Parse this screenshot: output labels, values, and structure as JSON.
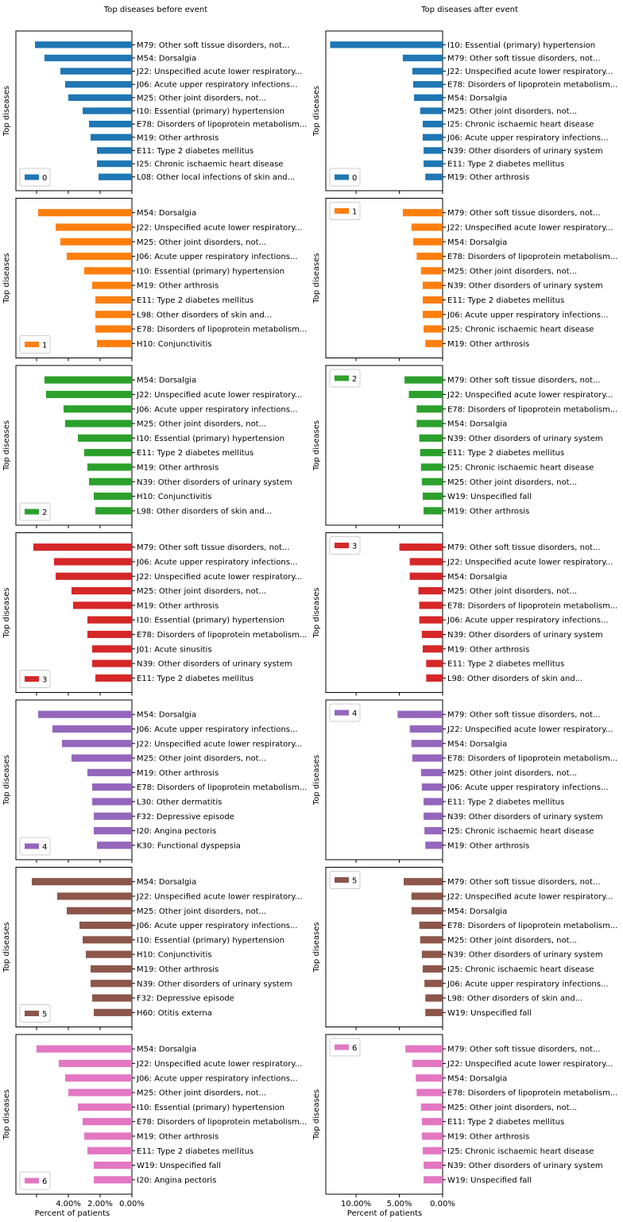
{
  "figure": {
    "title_left": "Top diseases before event",
    "title_right": "Top diseases after event",
    "ylabel": "Top diseases",
    "xlabel": "Percent of patients"
  },
  "colors": [
    "#1f77b4",
    "#ff7f0e",
    "#2ca02c",
    "#d62728",
    "#9467bd",
    "#8c564b",
    "#e377c2"
  ],
  "chart_data": [
    {
      "type": "bar",
      "orientation": "horizontal",
      "x_inverted": true,
      "column": "before",
      "legend": "0",
      "color": "#1f77b4",
      "xlim": [
        7.3,
        0
      ],
      "xticks": [
        6,
        4,
        2,
        0
      ],
      "xticklabels": [
        "",
        "",
        "",
        ""
      ],
      "categories": [
        "M79: Other soft tissue disorders, not...",
        "M54: Dorsalgia",
        "J22: Unspecified acute lower respiratory...",
        "J06: Acute upper respiratory infections...",
        "M25: Other joint disorders, not...",
        "I10: Essential (primary) hypertension",
        "E78: Disorders of lipoprotein metabolism...",
        "M19: Other arthrosis",
        "E11: Type 2 diabetes mellitus",
        "I25: Chronic ischaemic heart disease",
        "L08: Other local infections of skin and..."
      ],
      "values": [
        6.1,
        5.5,
        4.5,
        4.2,
        4.0,
        3.1,
        2.7,
        2.6,
        2.2,
        2.2,
        2.1
      ]
    },
    {
      "type": "bar",
      "orientation": "horizontal",
      "x_inverted": true,
      "column": "after",
      "legend": "0",
      "color": "#1f77b4",
      "xlim": [
        13.5,
        0
      ],
      "xticks": [
        10,
        5,
        0
      ],
      "xticklabels": [
        "",
        "",
        ""
      ],
      "categories": [
        "I10: Essential (primary) hypertension",
        "M79: Other soft tissue disorders, not...",
        "J22: Unspecified acute lower respiratory...",
        "E78: Disorders of lipoprotein metabolism...",
        "M54: Dorsalgia",
        "M25: Other joint disorders, not...",
        "I25: Chronic ischaemic heart disease",
        "J06: Acute upper respiratory infections...",
        "N39: Other disorders of urinary system",
        "E11: Type 2 diabetes mellitus",
        "M19: Other arthrosis"
      ],
      "values": [
        13.0,
        4.6,
        3.5,
        3.4,
        3.3,
        2.6,
        2.3,
        2.3,
        2.2,
        2.2,
        2.0
      ]
    },
    {
      "type": "bar",
      "orientation": "horizontal",
      "x_inverted": true,
      "column": "before",
      "legend": "1",
      "color": "#ff7f0e",
      "xlim": [
        7.3,
        0
      ],
      "xticks": [
        6,
        4,
        2,
        0
      ],
      "xticklabels": [
        "",
        "",
        "",
        ""
      ],
      "categories": [
        "M54: Dorsalgia",
        "J22: Unspecified acute lower respiratory...",
        "M25: Other joint disorders, not...",
        "J06: Acute upper respiratory infections...",
        "I10: Essential (primary) hypertension",
        "M19: Other arthrosis",
        "E11: Type 2 diabetes mellitus",
        "L98: Other disorders of skin and...",
        "E78: Disorders of lipoprotein metabolism...",
        "H10: Conjunctivitis"
      ],
      "values": [
        5.9,
        4.8,
        4.5,
        4.1,
        3.0,
        2.5,
        2.3,
        2.3,
        2.3,
        2.2
      ]
    },
    {
      "type": "bar",
      "orientation": "horizontal",
      "x_inverted": true,
      "column": "after",
      "legend": "1",
      "color": "#ff7f0e",
      "xlim": [
        13.5,
        0
      ],
      "xticks": [
        10,
        5,
        0
      ],
      "xticklabels": [
        "",
        "",
        ""
      ],
      "categories": [
        "M79: Other soft tissue disorders, not...",
        "J22: Unspecified acute lower respiratory...",
        "M54: Dorsalgia",
        "E78: Disorders of lipoprotein metabolism...",
        "M25: Other joint disorders, not...",
        "N39: Other disorders of urinary system",
        "E11: Type 2 diabetes mellitus",
        "J06: Acute upper respiratory infections...",
        "I25: Chronic ischaemic heart disease",
        "M19: Other arthrosis"
      ],
      "values": [
        4.6,
        3.6,
        3.4,
        3.0,
        2.5,
        2.3,
        2.3,
        2.3,
        2.2,
        2.0
      ]
    },
    {
      "type": "bar",
      "orientation": "horizontal",
      "x_inverted": true,
      "column": "before",
      "legend": "2",
      "color": "#2ca02c",
      "xlim": [
        7.3,
        0
      ],
      "xticks": [
        6,
        4,
        2,
        0
      ],
      "xticklabels": [
        "",
        "",
        "",
        ""
      ],
      "categories": [
        "M54: Dorsalgia",
        "J22: Unspecified acute lower respiratory...",
        "J06: Acute upper respiratory infections...",
        "M25: Other joint disorders, not...",
        "I10: Essential (primary) hypertension",
        "E11: Type 2 diabetes mellitus",
        "M19: Other arthrosis",
        "N39: Other disorders of urinary system",
        "H10: Conjunctivitis",
        "L98: Other disorders of skin and..."
      ],
      "values": [
        5.5,
        5.4,
        4.3,
        4.2,
        3.4,
        3.0,
        2.8,
        2.7,
        2.4,
        2.3
      ]
    },
    {
      "type": "bar",
      "orientation": "horizontal",
      "x_inverted": true,
      "column": "after",
      "legend": "2",
      "color": "#2ca02c",
      "xlim": [
        13.5,
        0
      ],
      "xticks": [
        10,
        5,
        0
      ],
      "xticklabels": [
        "",
        "",
        ""
      ],
      "categories": [
        "M79: Other soft tissue disorders, not...",
        "J22: Unspecified acute lower respiratory...",
        "E78: Disorders of lipoprotein metabolism...",
        "M54: Dorsalgia",
        "N39: Other disorders of urinary system",
        "E11: Type 2 diabetes mellitus",
        "I25: Chronic ischaemic heart disease",
        "M25: Other joint disorders, not...",
        "W19: Unspecified fall",
        "M19: Other arthrosis"
      ],
      "values": [
        4.4,
        3.9,
        3.0,
        3.0,
        2.7,
        2.6,
        2.5,
        2.4,
        2.3,
        2.2
      ]
    },
    {
      "type": "bar",
      "orientation": "horizontal",
      "x_inverted": true,
      "column": "before",
      "legend": "3",
      "color": "#d62728",
      "xlim": [
        7.3,
        0
      ],
      "xticks": [
        6,
        4,
        2,
        0
      ],
      "xticklabels": [
        "",
        "",
        "",
        ""
      ],
      "categories": [
        "M79: Other soft tissue disorders, not...",
        "J06: Acute upper respiratory infections...",
        "J22: Unspecified acute lower respiratory...",
        "M25: Other joint disorders, not...",
        "M19: Other arthrosis",
        "I10: Essential (primary) hypertension",
        "E78: Disorders of lipoprotein metabolism...",
        "J01: Acute sinusitis",
        "N39: Other disorders of urinary system",
        "E11: Type 2 diabetes mellitus"
      ],
      "values": [
        6.2,
        4.9,
        4.8,
        3.8,
        3.7,
        2.8,
        2.8,
        2.5,
        2.5,
        2.3
      ]
    },
    {
      "type": "bar",
      "orientation": "horizontal",
      "x_inverted": true,
      "column": "after",
      "legend": "3",
      "color": "#d62728",
      "xlim": [
        13.5,
        0
      ],
      "xticks": [
        10,
        5,
        0
      ],
      "xticklabels": [
        "",
        "",
        ""
      ],
      "categories": [
        "M79: Other soft tissue disorders, not...",
        "J22: Unspecified acute lower respiratory...",
        "M54: Dorsalgia",
        "M25: Other joint disorders, not...",
        "E78: Disorders of lipoprotein metabolism...",
        "J06: Acute upper respiratory infections...",
        "N39: Other disorders of urinary system",
        "M19: Other arthrosis",
        "E11: Type 2 diabetes mellitus",
        "L98: Other disorders of skin and..."
      ],
      "values": [
        5.0,
        3.8,
        3.8,
        2.8,
        2.7,
        2.7,
        2.4,
        2.3,
        1.9,
        1.9
      ]
    },
    {
      "type": "bar",
      "orientation": "horizontal",
      "x_inverted": true,
      "column": "before",
      "legend": "4",
      "color": "#9467bd",
      "xlim": [
        7.3,
        0
      ],
      "xticks": [
        6,
        4,
        2,
        0
      ],
      "xticklabels": [
        "",
        "",
        "",
        ""
      ],
      "categories": [
        "M54: Dorsalgia",
        "J06: Acute upper respiratory infections...",
        "J22: Unspecified acute lower respiratory...",
        "M25: Other joint disorders, not...",
        "M19: Other arthrosis",
        "E78: Disorders of lipoprotein metabolism...",
        "L30: Other dermatitis",
        "F32: Depressive episode",
        "I20: Angina pectoris",
        "K30: Functional dyspepsia"
      ],
      "values": [
        5.9,
        5.0,
        4.4,
        3.8,
        2.8,
        2.5,
        2.5,
        2.4,
        2.4,
        2.2
      ]
    },
    {
      "type": "bar",
      "orientation": "horizontal",
      "x_inverted": true,
      "column": "after",
      "legend": "4",
      "color": "#9467bd",
      "xlim": [
        13.5,
        0
      ],
      "xticks": [
        10,
        5,
        0
      ],
      "xticklabels": [
        "",
        "",
        ""
      ],
      "categories": [
        "M79: Other soft tissue disorders, not...",
        "J22: Unspecified acute lower respiratory...",
        "M54: Dorsalgia",
        "E78: Disorders of lipoprotein metabolism...",
        "M25: Other joint disorders, not...",
        "J06: Acute upper respiratory infections...",
        "E11: Type 2 diabetes mellitus",
        "N39: Other disorders of urinary system",
        "I25: Chronic ischaemic heart disease",
        "M19: Other arthrosis"
      ],
      "values": [
        5.2,
        3.8,
        3.6,
        3.5,
        2.5,
        2.4,
        2.2,
        2.2,
        2.1,
        2.0
      ]
    },
    {
      "type": "bar",
      "orientation": "horizontal",
      "x_inverted": true,
      "column": "before",
      "legend": "5",
      "color": "#8c564b",
      "xlim": [
        7.3,
        0
      ],
      "xticks": [
        6,
        4,
        2,
        0
      ],
      "xticklabels": [
        "",
        "",
        "",
        ""
      ],
      "categories": [
        "M54: Dorsalgia",
        "J22: Unspecified acute lower respiratory...",
        "M25: Other joint disorders, not...",
        "J06: Acute upper respiratory infections...",
        "I10: Essential (primary) hypertension",
        "H10: Conjunctivitis",
        "M19: Other arthrosis",
        "N39: Other disorders of urinary system",
        "F32: Depressive episode",
        "H60: Otitis externa"
      ],
      "values": [
        6.3,
        4.7,
        4.1,
        3.3,
        3.1,
        2.9,
        2.6,
        2.6,
        2.5,
        2.4
      ]
    },
    {
      "type": "bar",
      "orientation": "horizontal",
      "x_inverted": true,
      "column": "after",
      "legend": "5",
      "color": "#8c564b",
      "xlim": [
        13.5,
        0
      ],
      "xticks": [
        10,
        5,
        0
      ],
      "xticklabels": [
        "",
        "",
        ""
      ],
      "categories": [
        "M79: Other soft tissue disorders, not...",
        "J22: Unspecified acute lower respiratory...",
        "M54: Dorsalgia",
        "E78: Disorders of lipoprotein metabolism...",
        "M25: Other joint disorders, not...",
        "N39: Other disorders of urinary system",
        "I25: Chronic ischaemic heart disease",
        "J06: Acute upper respiratory infections...",
        "L98: Other disorders of skin and...",
        "W19: Unspecified fall"
      ],
      "values": [
        4.5,
        3.6,
        3.6,
        2.7,
        2.6,
        2.4,
        2.3,
        2.1,
        2.0,
        2.0
      ]
    },
    {
      "type": "bar",
      "orientation": "horizontal",
      "x_inverted": true,
      "column": "before",
      "legend": "6",
      "color": "#e377c2",
      "xlim": [
        7.3,
        0
      ],
      "xticks": [
        6,
        4,
        2,
        0
      ],
      "xticklabels": [
        "",
        "4.00%",
        "2.00%",
        "0.00%"
      ],
      "categories": [
        "M54: Dorsalgia",
        "J22: Unspecified acute lower respiratory...",
        "J06: Acute upper respiratory infections...",
        "M25: Other joint disorders, not...",
        "I10: Essential (primary) hypertension",
        "E78: Disorders of lipoprotein metabolism...",
        "M19: Other arthrosis",
        "E11: Type 2 diabetes mellitus",
        "W19: Unspecified fall",
        "I20: Angina pectoris"
      ],
      "values": [
        6.0,
        4.6,
        4.2,
        4.0,
        3.4,
        3.1,
        3.0,
        2.8,
        2.4,
        2.4
      ]
    },
    {
      "type": "bar",
      "orientation": "horizontal",
      "x_inverted": true,
      "column": "after",
      "legend": "6",
      "color": "#e377c2",
      "xlim": [
        13.5,
        0
      ],
      "xticks": [
        10,
        5,
        0
      ],
      "xticklabels": [
        "10.00%",
        "5.00%",
        "0.00%"
      ],
      "categories": [
        "M79: Other soft tissue disorders, not...",
        "J22: Unspecified acute lower respiratory...",
        "M54: Dorsalgia",
        "E78: Disorders of lipoprotein metabolism...",
        "M25: Other joint disorders, not...",
        "E11: Type 2 diabetes mellitus",
        "M19: Other arthrosis",
        "I25: Chronic ischaemic heart disease",
        "N39: Other disorders of urinary system",
        "W19: Unspecified fall"
      ],
      "values": [
        4.3,
        3.5,
        3.1,
        3.0,
        2.5,
        2.4,
        2.4,
        2.3,
        2.2,
        2.2
      ]
    }
  ]
}
